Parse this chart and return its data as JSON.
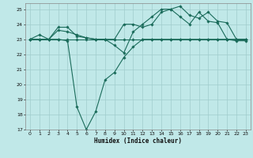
{
  "xlabel": "Humidex (Indice chaleur)",
  "bg_color": "#c0e8e8",
  "grid_color": "#a0cccc",
  "line_color": "#1a6b5a",
  "xlim": [
    -0.5,
    23.5
  ],
  "ylim": [
    17,
    25.4
  ],
  "xticks": [
    0,
    1,
    2,
    3,
    4,
    5,
    6,
    7,
    8,
    9,
    10,
    11,
    12,
    13,
    14,
    15,
    16,
    17,
    18,
    19,
    20,
    21,
    22,
    23
  ],
  "yticks": [
    17,
    18,
    19,
    20,
    21,
    22,
    23,
    24,
    25
  ],
  "series": [
    {
      "x": [
        0,
        1,
        2,
        3,
        4,
        5,
        6,
        7,
        8,
        9,
        10,
        11,
        12,
        13,
        14,
        15,
        16,
        17,
        18,
        19,
        20,
        21,
        22,
        23
      ],
      "y": [
        23,
        23.3,
        23,
        23,
        22.9,
        18.5,
        17.0,
        18.2,
        20.3,
        20.8,
        21.8,
        22.5,
        23.0,
        23.0,
        23.0,
        23.0,
        23.0,
        23.0,
        23.0,
        23.0,
        23.0,
        23.0,
        22.9,
        22.9
      ]
    },
    {
      "x": [
        0,
        1,
        2,
        3,
        4,
        5,
        6,
        7,
        8,
        9,
        10,
        11,
        12,
        13,
        14,
        15,
        16,
        17,
        18,
        19,
        20,
        21,
        22,
        23
      ],
      "y": [
        23,
        23,
        23,
        23.6,
        23.5,
        23.3,
        23.1,
        23.0,
        23.0,
        22.6,
        22.1,
        23.5,
        24.0,
        24.5,
        25.0,
        25.0,
        25.2,
        24.6,
        24.4,
        24.8,
        24.2,
        24.1,
        23.0,
        23.0
      ]
    },
    {
      "x": [
        0,
        1,
        2,
        3,
        4,
        5,
        6,
        7,
        8,
        9,
        10,
        11,
        12,
        13,
        14,
        15,
        16,
        17,
        18,
        19,
        20,
        21,
        22,
        23
      ],
      "y": [
        23,
        23,
        23,
        23,
        23,
        23,
        23,
        23,
        23,
        23,
        23,
        23,
        23,
        23,
        23,
        23,
        23,
        23,
        23,
        23,
        23,
        23,
        23,
        23
      ]
    },
    {
      "x": [
        0,
        1,
        2,
        3,
        4,
        5,
        6,
        7,
        8,
        9,
        10,
        11,
        12,
        13,
        14,
        15,
        16,
        17,
        18,
        19,
        20,
        21,
        22,
        23
      ],
      "y": [
        23,
        23,
        23,
        23.8,
        23.8,
        23.2,
        23.1,
        23.0,
        23.0,
        23.0,
        24.0,
        24.0,
        23.8,
        24.0,
        24.8,
        25.0,
        24.5,
        24.0,
        24.8,
        24.2,
        24.1,
        23.0,
        23.0,
        23.0
      ]
    }
  ]
}
